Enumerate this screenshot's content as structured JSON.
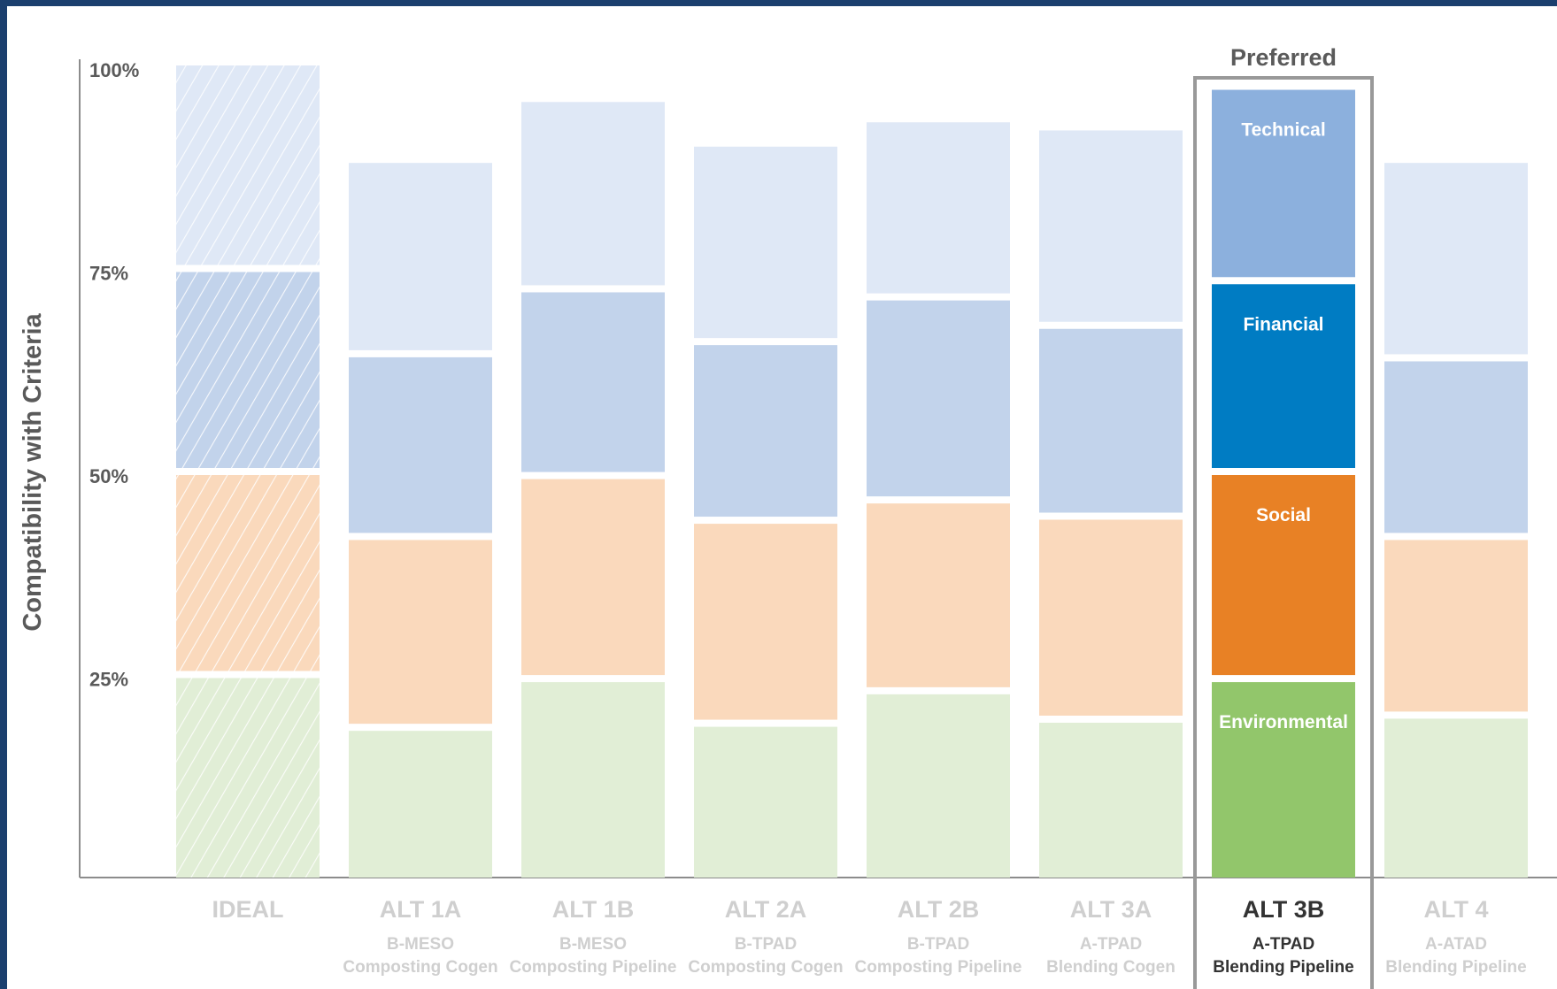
{
  "chart_data": {
    "type": "bar",
    "stacked": true,
    "ylabel": "Compatibility with Criteria",
    "ylim": [
      0,
      100
    ],
    "yticks": [
      "25%",
      "50%",
      "75%",
      "100%"
    ],
    "ytick_values": [
      25,
      50,
      75,
      100
    ],
    "highlight_label": "Preferred",
    "highlight_index": 6,
    "series_order": [
      "Environmental",
      "Social",
      "Financial",
      "Technical"
    ],
    "colors": {
      "Environmental": {
        "strong": "#92c66b",
        "faint": "#e1eed6"
      },
      "Social": {
        "strong": "#e88125",
        "faint": "#fad9bc"
      },
      "Financial": {
        "strong": "#007cc3",
        "faint": "#c2d3eb"
      },
      "Technical": {
        "strong": "#8cb0dd",
        "faint": "#dfe8f6"
      }
    },
    "categories": [
      {
        "label": "IDEAL",
        "sub1": "",
        "sub2": "",
        "values": [
          25,
          25,
          25,
          25
        ],
        "hatched": true
      },
      {
        "label": "ALT 1A",
        "sub1": "B-MESO",
        "sub2": "Composting Cogen",
        "values": [
          18.5,
          23.5,
          22.5,
          23.5
        ]
      },
      {
        "label": "ALT 1B",
        "sub1": "B-MESO",
        "sub2": "Composting Pipeline",
        "values": [
          24.5,
          25,
          23,
          23
        ]
      },
      {
        "label": "ALT 2A",
        "sub1": "B-TPAD",
        "sub2": "Composting Cogen",
        "values": [
          19,
          25,
          22,
          24
        ]
      },
      {
        "label": "ALT 2B",
        "sub1": "B-TPAD",
        "sub2": "Composting Pipeline",
        "values": [
          23,
          23.5,
          25,
          21.5
        ]
      },
      {
        "label": "ALT 3A",
        "sub1": "A-TPAD",
        "sub2": "Blending Cogen",
        "values": [
          19.5,
          25,
          23.5,
          24
        ]
      },
      {
        "label": "ALT 3B",
        "sub1": "A-TPAD",
        "sub2": "Blending Pipeline",
        "values": [
          24.5,
          25.5,
          23.5,
          23.5
        ]
      },
      {
        "label": "ALT 4",
        "sub1": "A-ATAD",
        "sub2": "Blending Pipeline",
        "values": [
          20,
          22,
          22,
          24
        ]
      }
    ]
  }
}
